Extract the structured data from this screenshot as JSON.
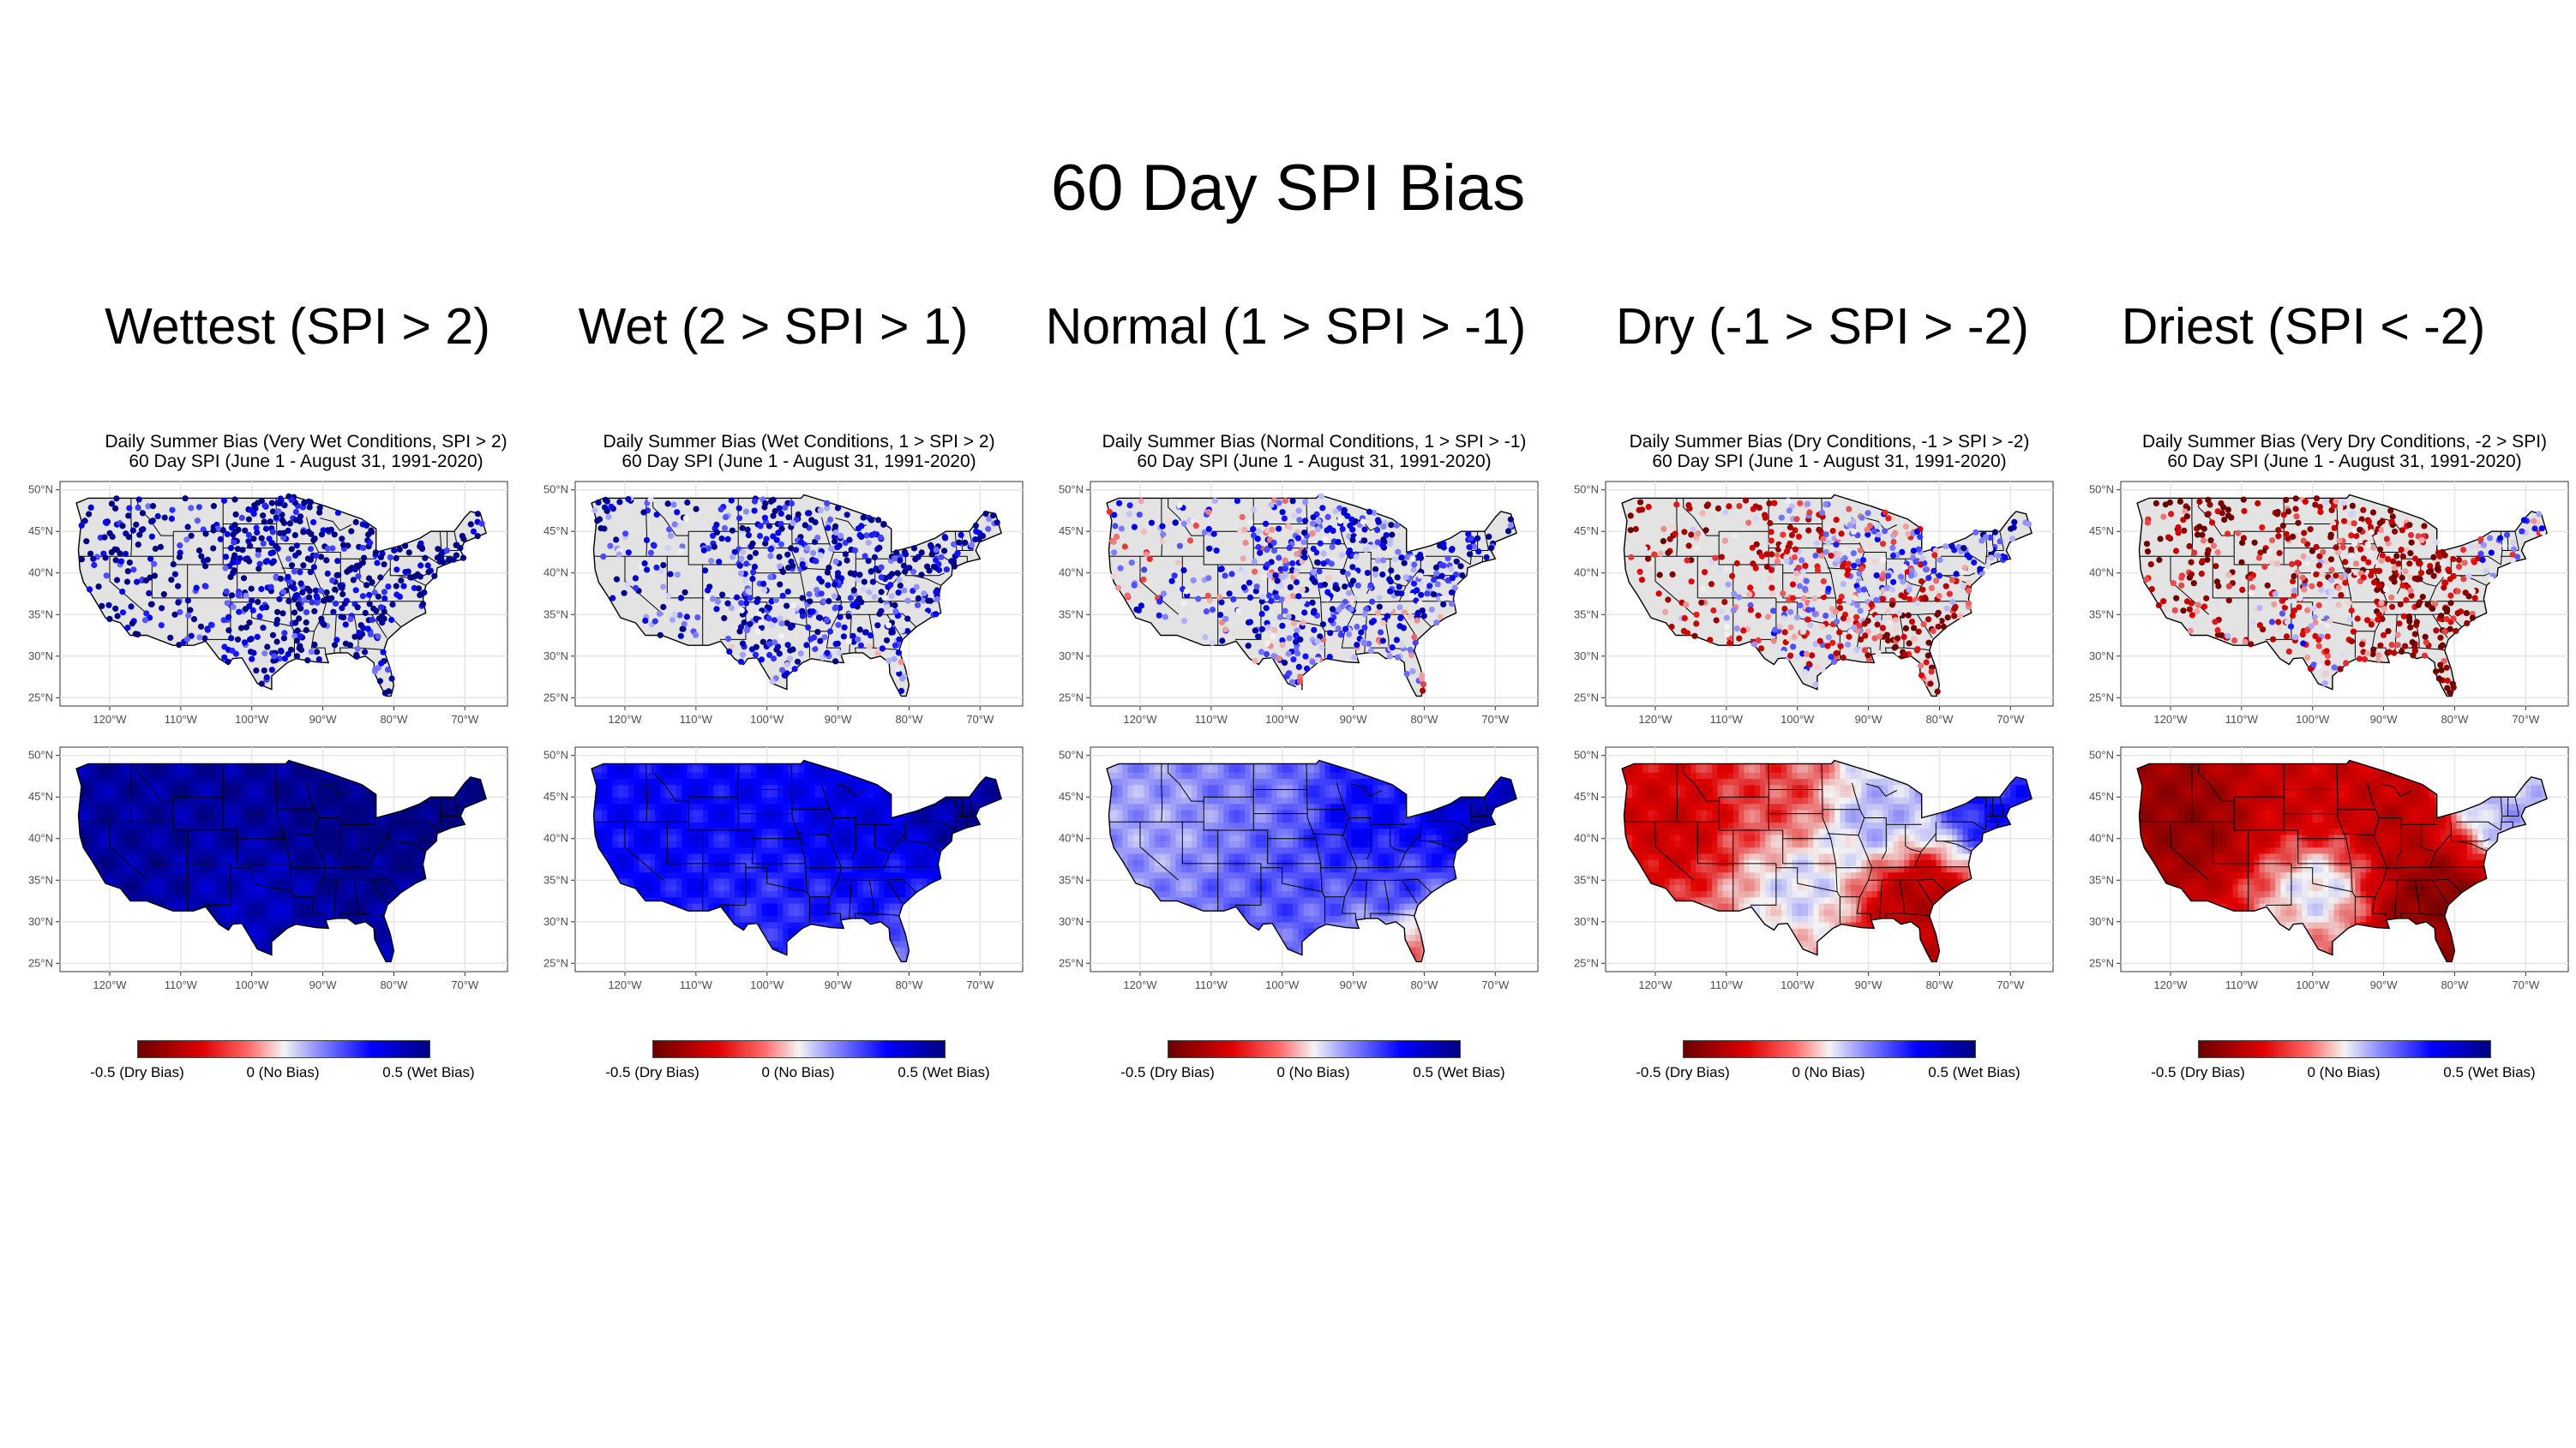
{
  "main_title": "60 Day SPI Bias",
  "colors": {
    "dry_dark": "#6b0000",
    "dry": "#e00000",
    "neutral": "#f4f4f4",
    "wet": "#0000ff",
    "wet_dark": "#000080",
    "land": "#e3e3e3",
    "border": "#000000"
  },
  "axis": {
    "x_ticks": [
      "120°W",
      "110°W",
      "100°W",
      "90°W",
      "80°W",
      "70°W"
    ],
    "y_ticks": [
      "50°N",
      "45°N",
      "40°N",
      "35°N",
      "30°N",
      "25°N"
    ],
    "lon_range": [
      -127,
      -64
    ],
    "lat_range": [
      24,
      51
    ]
  },
  "legend": {
    "low_label": "-0.5 (Dry Bias)",
    "mid_label": "0 (No Bias)",
    "high_label": "0.5 (Wet Bias)"
  },
  "columns": [
    {
      "heading": "Wettest (SPI > 2)",
      "panel_title_line1": "Daily Summer Bias (Very Wet Conditions, SPI > 2)",
      "panel_title_line2": "60 Day SPI (June 1 - August 31, 1991-2020)",
      "regional_bias": {
        "west": 0.45,
        "northern_plains": 0.45,
        "southern_plains": 0.4,
        "midwest": 0.5,
        "southeast": 0.48,
        "northeast": 0.5,
        "florida": 0.4
      }
    },
    {
      "heading": "Wet (2 > SPI > 1)",
      "panel_title_line1": "Daily Summer Bias (Wet Conditions, 1 > SPI > 2)",
      "panel_title_line2": "60 Day SPI (June 1 - August 31, 1991-2020)",
      "regional_bias": {
        "west": 0.3,
        "northern_plains": 0.3,
        "southern_plains": 0.25,
        "midwest": 0.35,
        "southeast": 0.3,
        "northeast": 0.45,
        "florida": 0.15
      }
    },
    {
      "heading": "Normal (1 > SPI > -1)",
      "panel_title_line1": "Daily Summer Bias (Normal Conditions, 1 > SPI > -1)",
      "panel_title_line2": "60 Day SPI (June 1 - August 31, 1991-2020)",
      "regional_bias": {
        "west": 0.1,
        "northern_plains": 0.15,
        "southern_plains": 0.2,
        "midwest": 0.3,
        "southeast": 0.25,
        "northeast": 0.4,
        "florida": -0.15
      }
    },
    {
      "heading": "Dry (-1 > SPI > -2)",
      "panel_title_line1": "Daily Summer Bias (Dry Conditions, -1 > SPI > -2)",
      "panel_title_line2": "60 Day SPI (June 1 - August 31, 1991-2020)",
      "regional_bias": {
        "west": -0.25,
        "northern_plains": -0.15,
        "southern_plains": 0.05,
        "midwest": 0.1,
        "southeast": -0.35,
        "northeast": 0.3,
        "florida": -0.3
      }
    },
    {
      "heading": "Driest (SPI < -2)",
      "panel_title_line1": "Daily Summer Bias (Very Dry Conditions, -2 > SPI)",
      "panel_title_line2": "60 Day SPI (June 1 - August 31, 1991-2020)",
      "regional_bias": {
        "west": -0.4,
        "northern_plains": -0.25,
        "southern_plains": 0.05,
        "midwest": -0.3,
        "southeast": -0.45,
        "northeast": 0.1,
        "florida": -0.4
      }
    }
  ]
}
